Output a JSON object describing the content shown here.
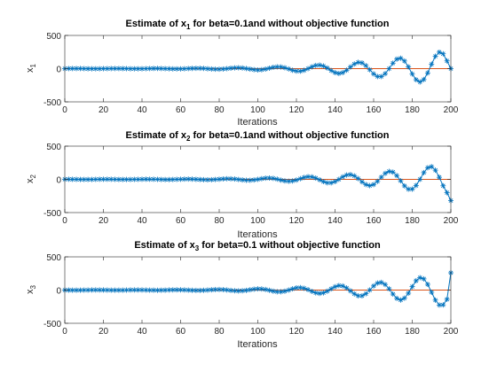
{
  "chart_data": [
    {
      "type": "line",
      "title_main": "Estimate of x",
      "title_sub": "1",
      "title_rest": " for beta=0.1and without objective function",
      "ylabel_main": "x",
      "ylabel_sub": "1",
      "xlabel": "Iterations",
      "xlim": [
        0,
        200
      ],
      "ylim": [
        -500,
        500
      ],
      "xticks": [
        0,
        20,
        40,
        60,
        80,
        100,
        120,
        140,
        160,
        180,
        200
      ],
      "yticks": [
        -500,
        0,
        500
      ],
      "series": [
        {
          "values_x": [
            0,
            200
          ],
          "values_y": [
            0,
            0
          ],
          "color": "#D95319",
          "marker": "none"
        },
        {
          "color": "#0072BD",
          "marker": "*",
          "x_start": 0,
          "x_end": 200,
          "x_step": 2,
          "period": 21,
          "amplitude_start": 2,
          "amplitude_end": 280,
          "growth": 0.028,
          "phase": 0.0,
          "end_point": [
            200,
            0
          ]
        }
      ]
    },
    {
      "type": "line",
      "title_main": "Estimate of x",
      "title_sub": "2",
      "title_rest": " for beta=0.1and without objective function",
      "ylabel_main": "x",
      "ylabel_sub": "2",
      "xlabel": "Iterations",
      "xlim": [
        0,
        200
      ],
      "ylim": [
        -500,
        500
      ],
      "xticks": [
        0,
        20,
        40,
        60,
        80,
        100,
        120,
        140,
        160,
        180,
        200
      ],
      "yticks": [
        -500,
        0,
        500
      ],
      "series": [
        {
          "values_x": [
            0,
            200
          ],
          "values_y": [
            0,
            0
          ],
          "color": "#D95319",
          "marker": "none"
        },
        {
          "color": "#0072BD",
          "marker": "*",
          "x_start": 0,
          "x_end": 200,
          "x_step": 2,
          "period": 21,
          "amplitude_start": 2,
          "amplitude_end": 240,
          "growth": 0.028,
          "phase": 1.5,
          "end_point": [
            200,
            -320
          ]
        }
      ]
    },
    {
      "type": "line",
      "title_main": "Estimate of x",
      "title_sub": "3",
      "title_rest": " for beta=0.1 without objective function",
      "ylabel_main": "x",
      "ylabel_sub": "3",
      "xlabel": "Iterations",
      "xlim": [
        0,
        200
      ],
      "ylim": [
        -500,
        500
      ],
      "xticks": [
        0,
        20,
        40,
        60,
        80,
        100,
        120,
        140,
        160,
        180,
        200
      ],
      "yticks": [
        -500,
        0,
        500
      ],
      "series": [
        {
          "values_x": [
            0,
            200
          ],
          "values_y": [
            0,
            0
          ],
          "color": "#D95319",
          "marker": "none"
        },
        {
          "color": "#0072BD",
          "marker": "*",
          "x_start": 0,
          "x_end": 200,
          "x_step": 2,
          "period": 21,
          "amplitude_start": 2,
          "amplitude_end": 260,
          "growth": 0.028,
          "phase": 3.0,
          "end_point": [
            200,
            260
          ]
        }
      ]
    }
  ]
}
